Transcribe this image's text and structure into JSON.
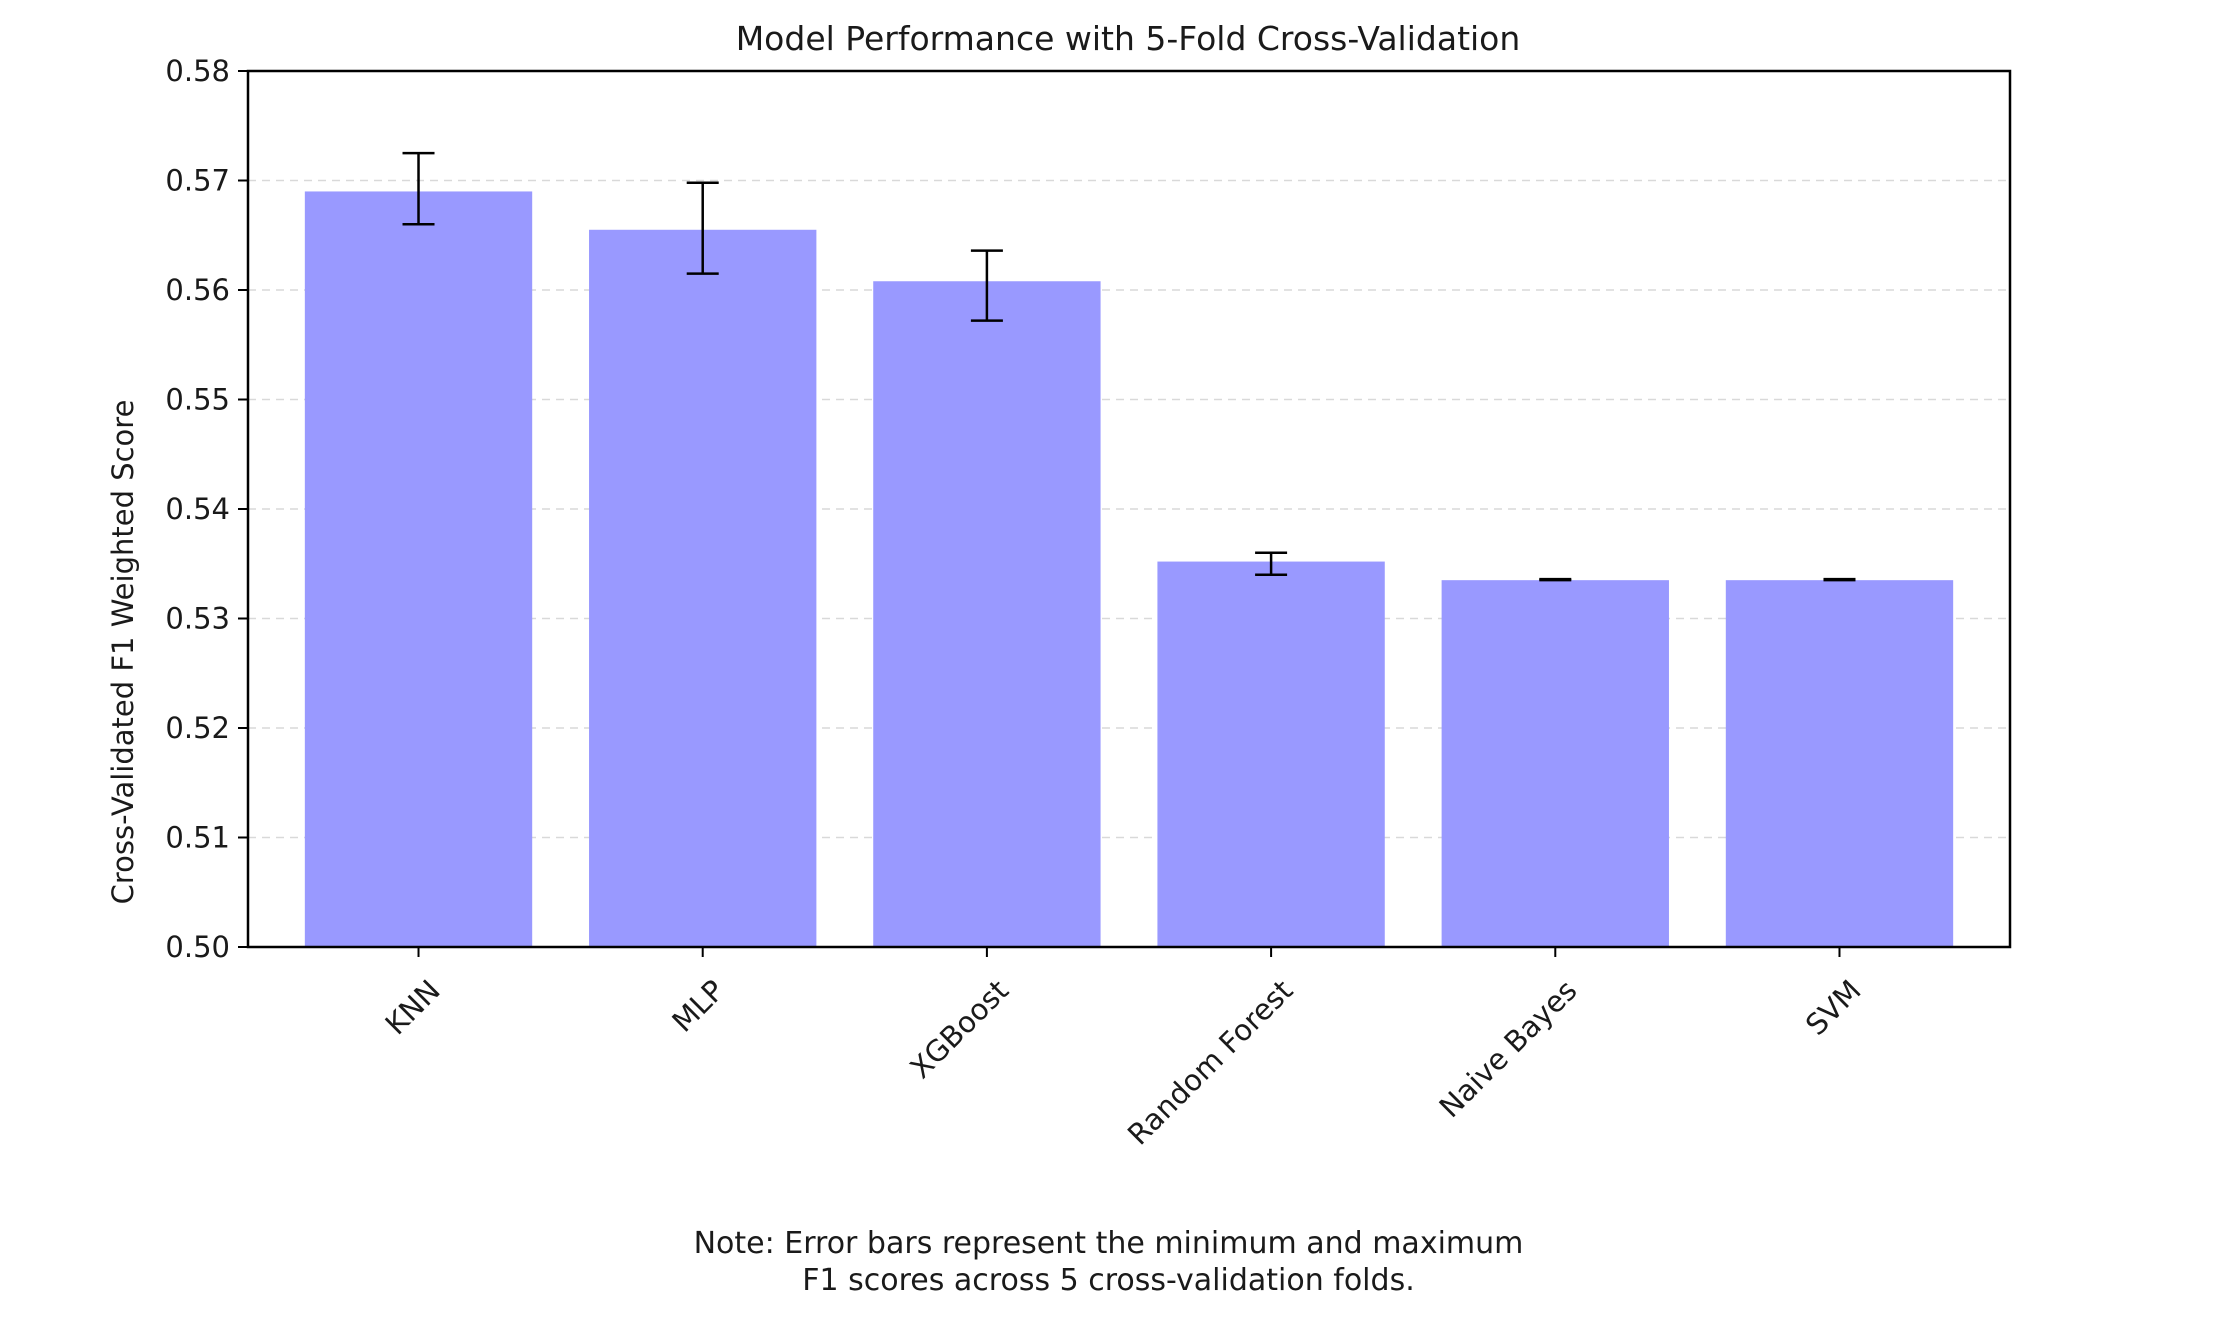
{
  "chart_data": {
    "type": "bar",
    "title": "Model Performance with 5-Fold Cross-Validation",
    "xlabel": "",
    "ylabel": "Cross-Validated F1 Weighted Score",
    "categories": [
      "KNN",
      "MLP",
      "XGBoost",
      "Random Forest",
      "Naive Bayes",
      "SVM"
    ],
    "values": [
      0.569,
      0.5655,
      0.5608,
      0.5352,
      0.5335,
      0.5335
    ],
    "error_min": [
      0.566,
      0.5615,
      0.5572,
      0.534,
      0.5335,
      0.5335
    ],
    "error_max": [
      0.5725,
      0.5698,
      0.5636,
      0.536,
      0.5336,
      0.5336
    ],
    "ylim": [
      0.5,
      0.58
    ],
    "yticks": [
      "0.50",
      "0.51",
      "0.52",
      "0.53",
      "0.54",
      "0.55",
      "0.56",
      "0.57",
      "0.58"
    ],
    "grid": "horizontal dashed",
    "bar_color": "#9999ff",
    "note": [
      "Note: Error bars represent the minimum and maximum",
      "F1 scores across 5 cross-validation folds."
    ]
  }
}
